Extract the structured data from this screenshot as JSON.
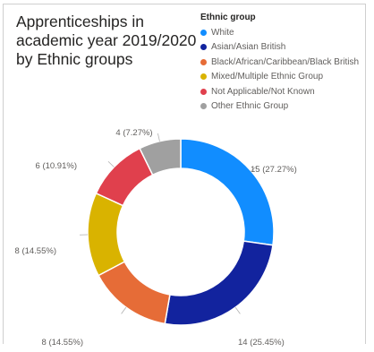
{
  "chart_data": {
    "type": "pie",
    "donut": true,
    "title_lines": [
      "Apprenticeships in",
      "academic year 2019/2020",
      "by Ethnic groups"
    ],
    "legend": {
      "title": "Ethnic group",
      "placement": "top-right"
    },
    "slices": [
      {
        "name": "White",
        "value": 15,
        "label": "15 (27.27%)",
        "color": "#118dff"
      },
      {
        "name": "Asian/Asian British",
        "value": 14,
        "label": "14 (25.45%)",
        "color": "#12239e"
      },
      {
        "name": "Black/African/Caribbean/Black British",
        "value": 8,
        "label": "8 (14.55%)",
        "color": "#e66c37"
      },
      {
        "name": "Mixed/Multiple Ethnic Group",
        "value": 8,
        "label": "8 (14.55%)",
        "color": "#d9b300"
      },
      {
        "name": "Not Applicable/Not Known",
        "value": 6,
        "label": "6 (10.91%)",
        "color": "#e0404d"
      },
      {
        "name": "Other Ethnic Group",
        "value": 4,
        "label": "4 (7.27%)",
        "color": "#a0a0a0"
      }
    ]
  }
}
